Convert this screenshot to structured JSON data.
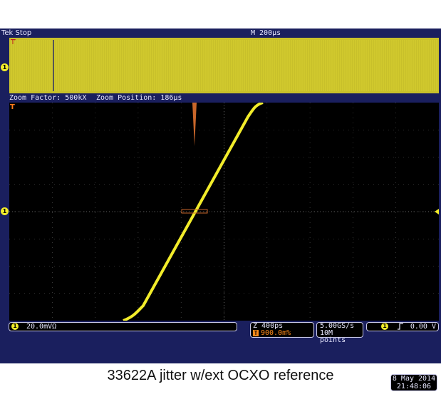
{
  "topbar": {
    "brand": "Tek",
    "status": "Stop",
    "horizontal_scale": "M 200µs"
  },
  "overview": {
    "trigger_marker": "T",
    "channel_marker": "1"
  },
  "zoom": {
    "factor": "Zoom Factor: 500kX",
    "position": "Zoom Position: 186µs"
  },
  "screen": {
    "trigger_marker": "T",
    "channel_marker": "1"
  },
  "channel_box": {
    "channel": "1",
    "scale": "20.0mVΩ"
  },
  "timebase_box": {
    "zoom_scale": "Z 400ps",
    "trigger_icon": "T",
    "trigger_pos": "900.0m%"
  },
  "acq_box": {
    "rate": "5.00GS/s",
    "points": "10M points"
  },
  "trigger_box": {
    "channel": "1",
    "slope_icon": "rising-edge-icon",
    "level": "0.00 V"
  },
  "datetime": {
    "date": "8 May 2014",
    "time": "21:48:06"
  },
  "caption": "33622A jitter w/ext OCXO reference",
  "colors": {
    "trace": "#f2ec2a",
    "background": "#1a1f5e",
    "histogram": "#c8662a",
    "overview": "#c8c02a"
  }
}
